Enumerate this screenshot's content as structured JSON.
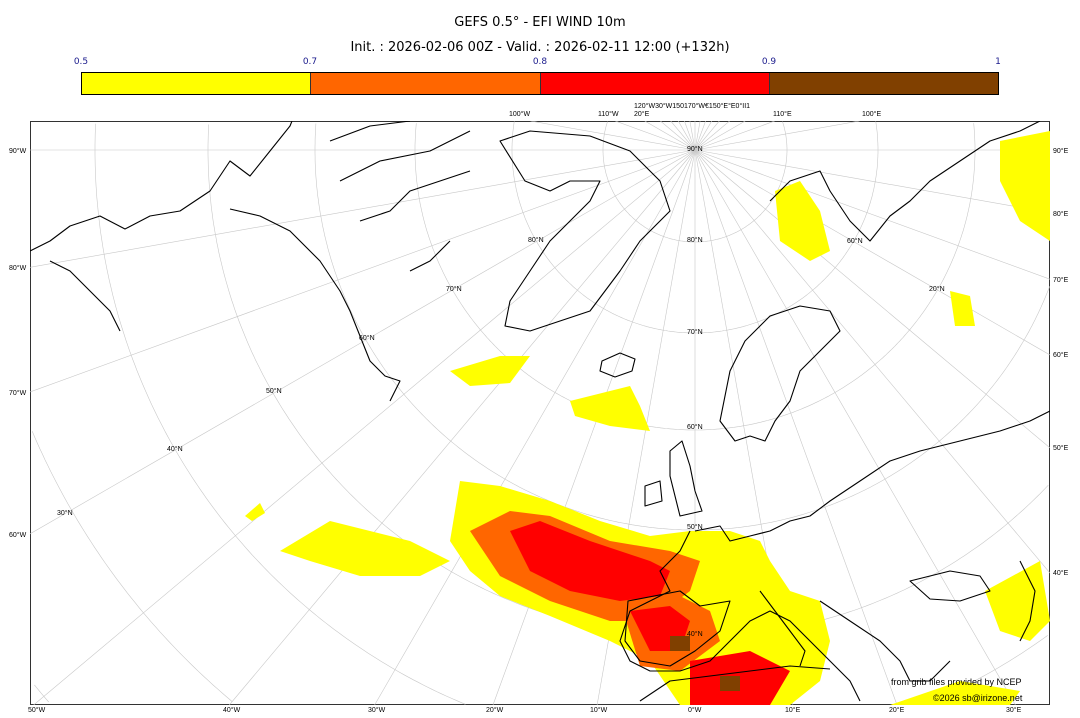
{
  "title": "GEFS 0.5° - EFI WIND 10m",
  "subtitle": "Init. : 2026-02-06 00Z - Valid. : 2026-02-11 12:00 (+132h)",
  "colorbar": {
    "ticks": [
      "0.5",
      "0.7",
      "0.8",
      "0.9",
      "1"
    ],
    "colors": [
      "#ffff00",
      "#ff6600",
      "#ff0000",
      "#804000"
    ]
  },
  "map": {
    "left_labels": [
      "90°W",
      "80°W",
      "70°W",
      "60°W"
    ],
    "right_labels": [
      "90°E",
      "80°E",
      "70°E",
      "60°E",
      "50°E",
      "40°E"
    ],
    "bottom_labels": [
      "50°W",
      "40°W",
      "30°W",
      "20°W",
      "10°W",
      "0°W",
      "10°E",
      "20°E",
      "30°E"
    ],
    "top_labels": [
      "100°W",
      "110°W",
      "120°W30°W150170°W€150°E°E0°II120°E",
      "110°E",
      "100°E"
    ],
    "inner_labels": [
      "90°N",
      "80°N",
      "70°N",
      "60°N",
      "50°N",
      "40°N",
      "80°N",
      "70°N",
      "60°N",
      "50°N",
      "40°N",
      "30°N",
      "20°N",
      "60°N",
      "70°N"
    ],
    "line_color": "#000000",
    "grid_color": "#c8c8c8"
  },
  "credits": {
    "source": "from grib files provided by NCEP",
    "copyright": "©2026 sb@irizone.net"
  }
}
